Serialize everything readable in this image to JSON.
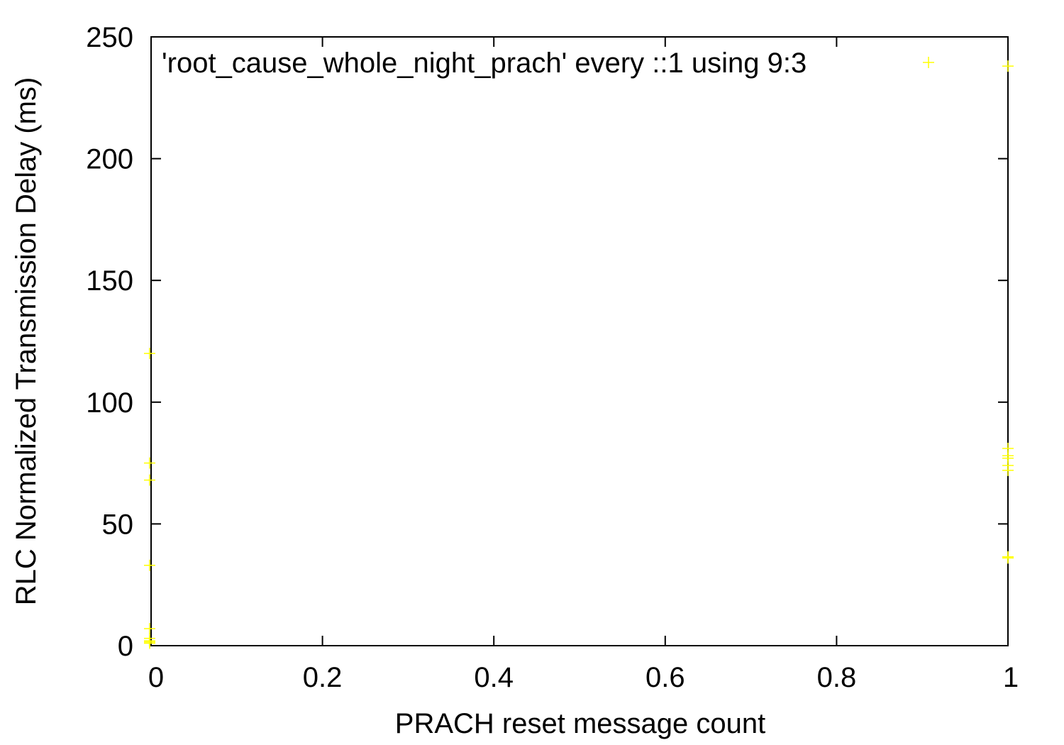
{
  "chart_data": {
    "type": "scatter",
    "xlabel": "PRACH reset message count",
    "ylabel": "RLC Normalized Transmission Delay (ms)",
    "xlim": [
      0,
      1
    ],
    "ylim": [
      0,
      250
    ],
    "xticks": [
      0,
      0.2,
      0.4,
      0.6,
      0.8,
      1
    ],
    "xtick_labels": [
      "0",
      "0.2",
      "0.4",
      "0.6",
      "0.8",
      "1"
    ],
    "yticks": [
      0,
      50,
      100,
      150,
      200,
      250
    ],
    "ytick_labels": [
      "0",
      "50",
      "100",
      "150",
      "200",
      "250"
    ],
    "grid": false,
    "legend_position": "top-right",
    "series": [
      {
        "name": "'root_cause_whole_night_prach' every ::1 using 9:3",
        "color": "#ffff00",
        "marker": "+",
        "points": [
          {
            "x": 0,
            "y": 120
          },
          {
            "x": 0,
            "y": 75
          },
          {
            "x": 0,
            "y": 68
          },
          {
            "x": 0,
            "y": 33
          },
          {
            "x": 0,
            "y": 7
          },
          {
            "x": 0,
            "y": 3
          },
          {
            "x": 0,
            "y": 2
          },
          {
            "x": 0,
            "y": 1.5
          },
          {
            "x": 0,
            "y": 1
          },
          {
            "x": 1,
            "y": 238
          },
          {
            "x": 1,
            "y": 81
          },
          {
            "x": 1,
            "y": 78
          },
          {
            "x": 1,
            "y": 77
          },
          {
            "x": 1,
            "y": 74
          },
          {
            "x": 1,
            "y": 72
          },
          {
            "x": 1,
            "y": 36.5
          },
          {
            "x": 1,
            "y": 36
          }
        ]
      }
    ]
  }
}
